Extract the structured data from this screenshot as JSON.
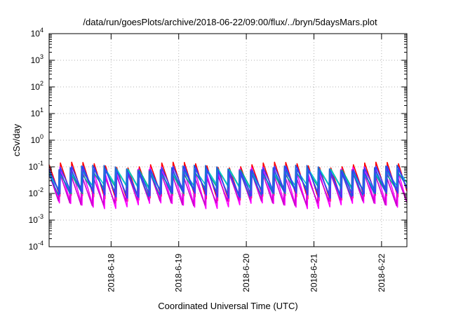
{
  "chart_data": {
    "type": "line",
    "title": "/data/run/goesPlots/archive/2018-06-22/09:00/flux/../bryn/5daysMars.plot",
    "xlabel": "Coordinated Universal Time (UTC)",
    "ylabel": "cSv/day",
    "yscale": "log",
    "ylim": [
      0.0001,
      10000
    ],
    "xlim": [
      "2018-06-17 02:00",
      "2018-06-22 09:00"
    ],
    "y_ticks": [
      {
        "base": "10",
        "exp": "-4",
        "value": 0.0001
      },
      {
        "base": "10",
        "exp": "-3",
        "value": 0.001
      },
      {
        "base": "10",
        "exp": "-2",
        "value": 0.01
      },
      {
        "base": "10",
        "exp": "-1",
        "value": 0.1
      },
      {
        "base": "10",
        "exp": "0",
        "value": 1
      },
      {
        "base": "10",
        "exp": "1",
        "value": 10
      },
      {
        "base": "10",
        "exp": "2",
        "value": 100
      },
      {
        "base": "10",
        "exp": "3",
        "value": 1000
      },
      {
        "base": "10",
        "exp": "4",
        "value": 10000
      }
    ],
    "x_ticks": [
      "2018-6-18",
      "2018-6-19",
      "2018-6-20",
      "2018-6-21",
      "2018-6-22"
    ],
    "grid": true,
    "legend": "none",
    "sawtooth_period_hours": 4,
    "series": [
      {
        "color": "#ff0000",
        "peak": 0.12,
        "trough": 0.006
      },
      {
        "color": "#ff00ff",
        "peak": 0.09,
        "trough": 0.0035
      },
      {
        "color": "#cc00cc",
        "peak": 0.07,
        "trough": 0.0045
      },
      {
        "color": "#00aa88",
        "peak": 0.065,
        "trough": 0.012
      },
      {
        "color": "#00cccc",
        "peak": 0.075,
        "trough": 0.016
      },
      {
        "color": "#1e5fd0",
        "peak": 0.1,
        "trough": 0.01
      },
      {
        "color": "#3a3aff",
        "peak": 0.085,
        "trough": 0.008
      }
    ]
  }
}
